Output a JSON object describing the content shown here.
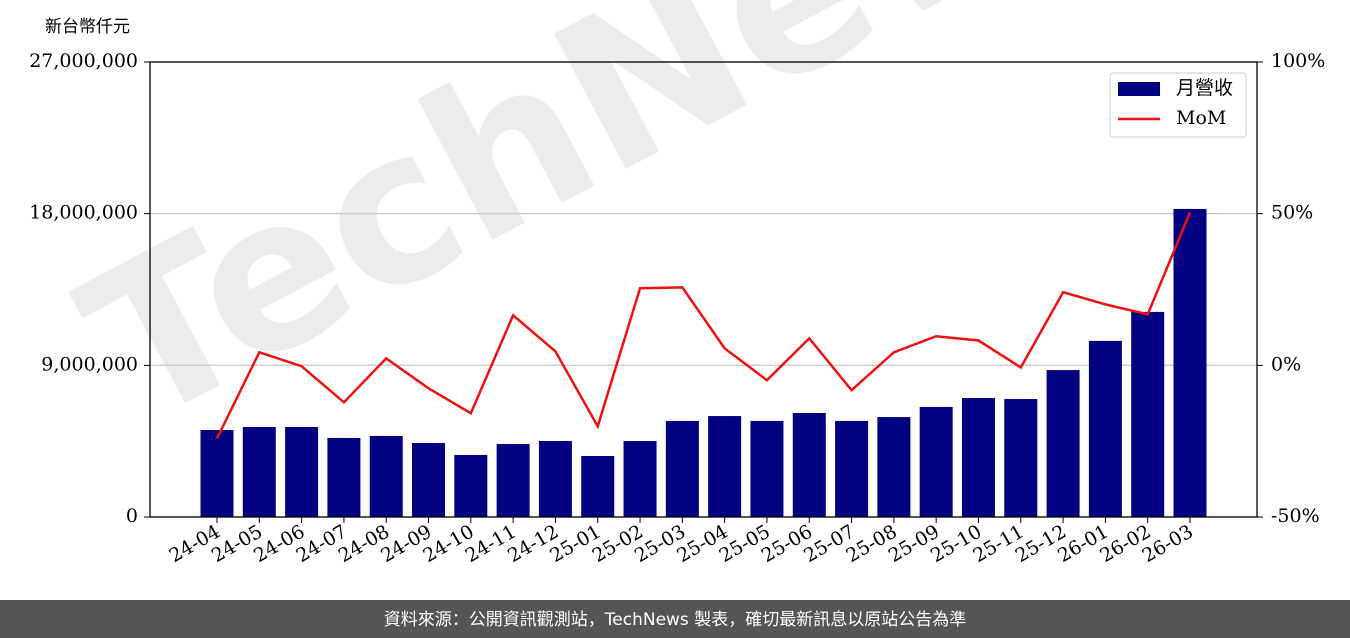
{
  "chart_data": {
    "type": "bar",
    "y_label": "新台幣仟元",
    "watermark": "TechNews",
    "footer": "資料來源：公開資訊觀測站，TechNews 製表，確切最新訊息以原站公告為準",
    "categories": [
      "24-04",
      "24-05",
      "24-06",
      "24-07",
      "24-08",
      "24-09",
      "24-10",
      "24-11",
      "24-12",
      "25-01",
      "25-02",
      "25-03",
      "25-04",
      "25-05",
      "25-06",
      "25-07",
      "25-08",
      "25-09",
      "25-10",
      "25-11",
      "25-12",
      "26-01",
      "26-02",
      "26-03"
    ],
    "series": [
      {
        "name": "月營收",
        "type": "bar",
        "axis": "y",
        "color": "#000080",
        "values": [
          5160000,
          5340000,
          5340000,
          4690000,
          4810000,
          4390000,
          3680000,
          4330000,
          4510000,
          3620000,
          4510000,
          5700000,
          5990000,
          5700000,
          6170000,
          5700000,
          5930000,
          6530000,
          7060000,
          7000000,
          8720000,
          10450000,
          12170000,
          18280000
        ]
      },
      {
        "name": "MoM",
        "type": "line",
        "axis": "y2",
        "color": "#ee1111",
        "values": [
          -24.1,
          4.3,
          -0.3,
          -12.2,
          2.3,
          -7.6,
          -15.8,
          16.5,
          4.6,
          -20.1,
          25.4,
          25.7,
          5.6,
          -4.9,
          8.9,
          -8.2,
          4.3,
          9.6,
          8.2,
          -0.7,
          24.1,
          20.1,
          16.8,
          50.4
        ]
      }
    ],
    "ylim": [
      0,
      27000000
    ],
    "yticks": [
      0,
      {
        "value": 9000000,
        "label": "9,000,000"
      },
      {
        "value": 18000000,
        "label": "18,000,000"
      },
      {
        "value": 27000000,
        "label": "27,000,000"
      }
    ],
    "y2lim": [
      -50,
      100
    ],
    "y2ticks": [
      {
        "value": -50,
        "label": "-50%"
      },
      {
        "value": 0,
        "label": "0%"
      },
      {
        "value": 50,
        "label": "50%"
      },
      {
        "value": 100,
        "label": "100%"
      }
    ],
    "grid": true,
    "legend": "upper-right"
  }
}
